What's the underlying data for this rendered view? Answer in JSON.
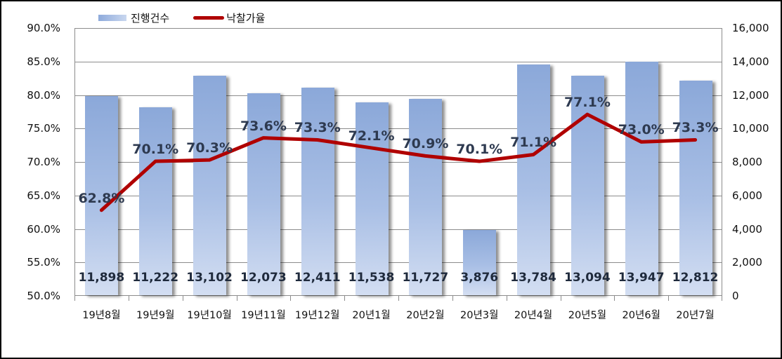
{
  "chart_data": {
    "type": "bar+line",
    "title": "",
    "categories": [
      "19년8월",
      "19년9월",
      "19년10월",
      "19년11월",
      "19년12월",
      "20년1월",
      "20년2월",
      "20년3월",
      "20년4월",
      "20년5월",
      "20년6월",
      "20년7월"
    ],
    "series": [
      {
        "name": "진행건수",
        "type": "bar",
        "axis": "right",
        "color": "#8eaadb",
        "values": [
          11898,
          11222,
          13102,
          12073,
          12411,
          11538,
          11727,
          3876,
          13784,
          13094,
          13947,
          12812
        ],
        "labels": [
          "11,898",
          "11,222",
          "13,102",
          "12,073",
          "12,411",
          "11,538",
          "11,727",
          "3,876",
          "13,784",
          "13,094",
          "13,947",
          "12,812"
        ]
      },
      {
        "name": "낙찰가율",
        "type": "line",
        "axis": "left",
        "color": "#b00000",
        "values": [
          62.8,
          70.1,
          70.3,
          73.6,
          73.3,
          72.1,
          70.9,
          70.1,
          71.1,
          77.1,
          73.0,
          73.3
        ],
        "labels": [
          "62.8%",
          "70.1%",
          "70.3%",
          "73.6%",
          "73.3%",
          "72.1%",
          "70.9%",
          "70.1%",
          "71.1%",
          "77.1%",
          "73.0%",
          "73.3%"
        ]
      }
    ],
    "y_left": {
      "min": 50,
      "max": 90,
      "step": 5,
      "ticks": [
        "90.0%",
        "85.0%",
        "80.0%",
        "75.0%",
        "70.0%",
        "65.0%",
        "60.0%",
        "55.0%",
        "50.0%"
      ]
    },
    "y_right": {
      "min": 0,
      "max": 16000,
      "step": 2000,
      "ticks": [
        "16,000",
        "14,000",
        "12,000",
        "10,000",
        "8,000",
        "6,000",
        "4,000",
        "2,000",
        "0"
      ]
    },
    "grid": true,
    "legend_position": "top-left"
  },
  "legend": {
    "bar_label": "진행건수",
    "line_label": "낙찰가율"
  }
}
